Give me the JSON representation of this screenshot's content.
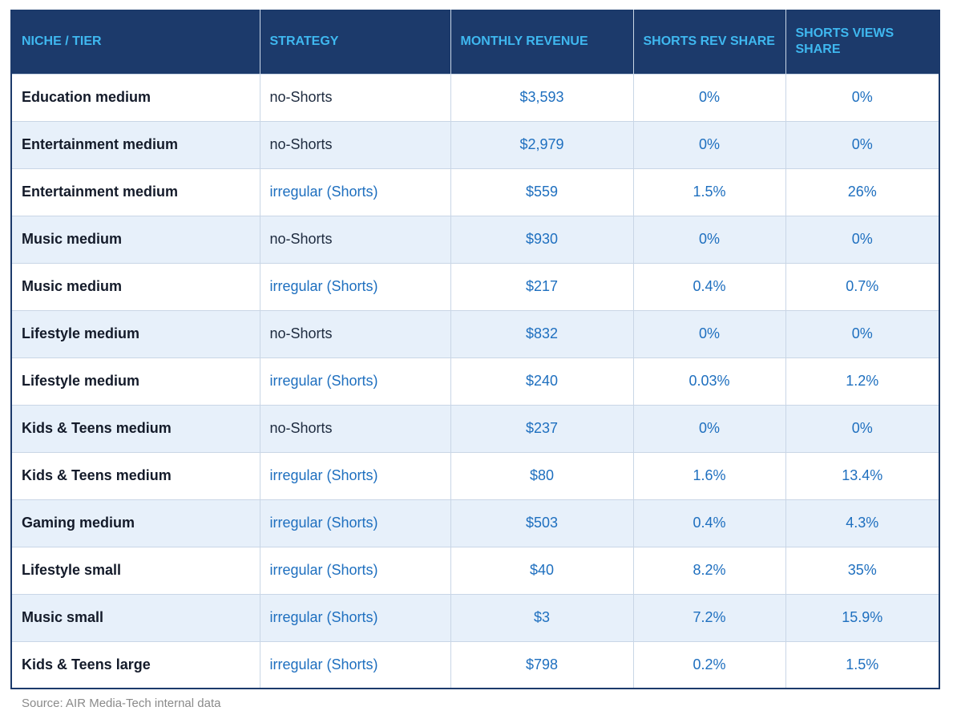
{
  "table": {
    "headers": [
      "NICHE / TIER",
      "STRATEGY",
      "MONTHLY REVENUE",
      "SHORTS REV SHARE",
      "SHORTS VIEWS SHARE"
    ],
    "rows": [
      {
        "niche": "Education medium",
        "strategy": "no-Shorts",
        "revenue": "$3,593",
        "rev_share": "0%",
        "views_share": "0%"
      },
      {
        "niche": "Entertainment medium",
        "strategy": "no-Shorts",
        "revenue": "$2,979",
        "rev_share": "0%",
        "views_share": "0%"
      },
      {
        "niche": "Entertainment medium",
        "strategy": "irregular (Shorts)",
        "revenue": "$559",
        "rev_share": "1.5%",
        "views_share": "26%"
      },
      {
        "niche": "Music medium",
        "strategy": "no-Shorts",
        "revenue": "$930",
        "rev_share": "0%",
        "views_share": "0%"
      },
      {
        "niche": "Music medium",
        "strategy": "irregular (Shorts)",
        "revenue": "$217",
        "rev_share": "0.4%",
        "views_share": "0.7%"
      },
      {
        "niche": "Lifestyle medium",
        "strategy": "no-Shorts",
        "revenue": "$832",
        "rev_share": "0%",
        "views_share": "0%"
      },
      {
        "niche": "Lifestyle medium",
        "strategy": "irregular (Shorts)",
        "revenue": "$240",
        "rev_share": "0.03%",
        "views_share": "1.2%"
      },
      {
        "niche": "Kids & Teens medium",
        "strategy": "no-Shorts",
        "revenue": "$237",
        "rev_share": "0%",
        "views_share": "0%"
      },
      {
        "niche": "Kids & Teens medium",
        "strategy": "irregular (Shorts)",
        "revenue": "$80",
        "rev_share": "1.6%",
        "views_share": "13.4%"
      },
      {
        "niche": "Gaming medium",
        "strategy": "irregular (Shorts)",
        "revenue": "$503",
        "rev_share": "0.4%",
        "views_share": "4.3%"
      },
      {
        "niche": "Lifestyle small",
        "strategy": "irregular (Shorts)",
        "revenue": "$40",
        "rev_share": "8.2%",
        "views_share": "35%"
      },
      {
        "niche": "Music small",
        "strategy": "irregular (Shorts)",
        "revenue": "$3",
        "rev_share": "7.2%",
        "views_share": "15.9%"
      },
      {
        "niche": "Kids & Teens large",
        "strategy": "irregular (Shorts)",
        "revenue": "$798",
        "rev_share": "0.2%",
        "views_share": "1.5%"
      }
    ]
  },
  "source": "Source: AIR Media-Tech internal data",
  "colors": {
    "header_bg": "#1c3a6b",
    "header_text": "#3fb8f0",
    "value_text": "#1e6fbf",
    "alt_row_bg": "#e7f0fa"
  }
}
